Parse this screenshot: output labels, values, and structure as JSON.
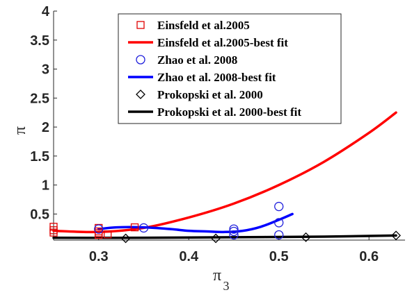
{
  "chart_data": {
    "type": "line",
    "xlabel": "π",
    "xlabel_sub": "3",
    "ylabel": "π",
    "xlim": [
      0.25,
      0.64
    ],
    "ylim": [
      0.05,
      4
    ],
    "xticks": [
      0.3,
      0.4,
      0.5,
      0.6
    ],
    "yticks": [
      0.5,
      1,
      1.5,
      2,
      2.5,
      3,
      3.5,
      4
    ],
    "xtick_labels": [
      "0.3",
      "0.4",
      "0.5",
      "0.6"
    ],
    "ytick_labels": [
      "0.5",
      "1",
      "1.5",
      "2",
      "2.5",
      "3",
      "3.5",
      "4"
    ],
    "legend_position": "top-center",
    "grid": false,
    "series": [
      {
        "name": "Einsfeld et al.2005",
        "kind": "scatter",
        "marker": "square",
        "color": "#e00000",
        "x": [
          0.25,
          0.25,
          0.25,
          0.3,
          0.3,
          0.3,
          0.3,
          0.31,
          0.34
        ],
        "y": [
          0.28,
          0.22,
          0.18,
          0.26,
          0.2,
          0.17,
          0.14,
          0.15,
          0.27
        ]
      },
      {
        "name": "Einsfeld et al.2005-best fit",
        "kind": "line",
        "color": "#ff0000",
        "x": [
          0.25,
          0.3,
          0.35,
          0.4,
          0.45,
          0.5,
          0.55,
          0.6,
          0.63
        ],
        "y": [
          0.21,
          0.19,
          0.26,
          0.44,
          0.68,
          1.0,
          1.4,
          1.9,
          2.25
        ]
      },
      {
        "name": "Zhao et al. 2008",
        "kind": "scatter",
        "marker": "circle",
        "color": "#1f1fdc",
        "x": [
          0.3,
          0.35,
          0.45,
          0.45,
          0.45,
          0.5,
          0.5,
          0.5
        ],
        "y": [
          0.24,
          0.26,
          0.24,
          0.2,
          0.14,
          0.63,
          0.35,
          0.14
        ]
      },
      {
        "name": "Zhao et al. 2008-best fit",
        "kind": "line",
        "color": "#0000ff",
        "x": [
          0.3,
          0.32,
          0.35,
          0.38,
          0.4,
          0.42,
          0.44,
          0.46,
          0.48,
          0.5,
          0.515
        ],
        "y": [
          0.24,
          0.27,
          0.27,
          0.24,
          0.21,
          0.2,
          0.19,
          0.21,
          0.28,
          0.4,
          0.5
        ]
      },
      {
        "name": "Prokopski et al. 2000",
        "kind": "scatter",
        "marker": "diamond",
        "color": "#000000",
        "x": [
          0.33,
          0.43,
          0.53,
          0.63
        ],
        "y": [
          0.08,
          0.08,
          0.1,
          0.13
        ]
      },
      {
        "name": "Prokopski et al. 2000-best fit",
        "kind": "line",
        "color": "#000000",
        "x": [
          0.25,
          0.35,
          0.45,
          0.55,
          0.63
        ],
        "y": [
          0.09,
          0.09,
          0.1,
          0.11,
          0.13
        ]
      }
    ]
  }
}
